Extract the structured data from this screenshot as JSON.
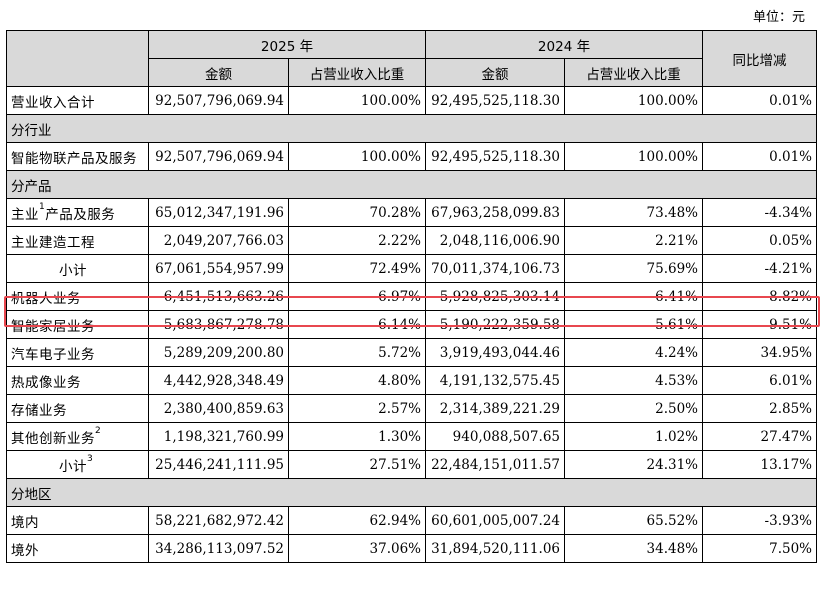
{
  "unit_label": "单位：元",
  "header": {
    "year_2025": "2025 年",
    "year_2024": "2024 年",
    "amount": "金额",
    "ratio": "占营业收入比重",
    "yoy": "同比增减"
  },
  "rows": [
    {
      "type": "data",
      "label": "营业收入合计",
      "a25": "92,507,796,069.94",
      "r25": "100.00%",
      "a24": "92,495,525,118.30",
      "r24": "100.00%",
      "yoy": "0.01%"
    },
    {
      "type": "section",
      "label": "分行业"
    },
    {
      "type": "data",
      "label": "智能物联产品及服务",
      "a25": "92,507,796,069.94",
      "r25": "100.00%",
      "a24": "92,495,525,118.30",
      "r24": "100.00%",
      "yoy": "0.01%"
    },
    {
      "type": "section",
      "label": "分产品"
    },
    {
      "type": "data",
      "label": "主业",
      "sup": "1",
      "label2": "产品及服务",
      "a25": "65,012,347,191.96",
      "r25": "70.28%",
      "a24": "67,963,258,099.83",
      "r24": "73.48%",
      "yoy": "-4.34%"
    },
    {
      "type": "data",
      "label": "主业建造工程",
      "a25": "2,049,207,766.03",
      "r25": "2.22%",
      "a24": "2,048,116,006.90",
      "r24": "2.21%",
      "yoy": "0.05%"
    },
    {
      "type": "data",
      "label": "小计",
      "indent": true,
      "a25": "67,061,554,957.99",
      "r25": "72.49%",
      "a24": "70,011,374,106.73",
      "r24": "75.69%",
      "yoy": "-4.21%"
    },
    {
      "type": "data",
      "label": "机器人业务",
      "a25": "6,451,513,663.26",
      "r25": "6.97%",
      "a24": "5,928,825,303.14",
      "r24": "6.41%",
      "yoy": "8.82%"
    },
    {
      "type": "data",
      "label": "智能家居业务",
      "a25": "5,683,867,278.78",
      "r25": "6.14%",
      "a24": "5,190,222,359.58",
      "r24": "5.61%",
      "yoy": "9.51%"
    },
    {
      "type": "data",
      "label": "汽车电子业务",
      "a25": "5,289,209,200.80",
      "r25": "5.72%",
      "a24": "3,919,493,044.46",
      "r24": "4.24%",
      "yoy": "34.95%"
    },
    {
      "type": "data",
      "label": "热成像业务",
      "a25": "4,442,928,348.49",
      "r25": "4.80%",
      "a24": "4,191,132,575.45",
      "r24": "4.53%",
      "yoy": "6.01%"
    },
    {
      "type": "data",
      "label": "存储业务",
      "a25": "2,380,400,859.63",
      "r25": "2.57%",
      "a24": "2,314,389,221.29",
      "r24": "2.50%",
      "yoy": "2.85%"
    },
    {
      "type": "data",
      "label": "其他创新业务",
      "sup": "2",
      "a25": "1,198,321,760.99",
      "r25": "1.30%",
      "a24": "940,088,507.65",
      "r24": "1.02%",
      "yoy": "27.47%"
    },
    {
      "type": "data",
      "label": "小计",
      "sup": "3",
      "indent": true,
      "a25": "25,446,241,111.95",
      "r25": "27.51%",
      "a24": "22,484,151,011.57",
      "r24": "24.31%",
      "yoy": "13.17%"
    },
    {
      "type": "section",
      "label": "分地区"
    },
    {
      "type": "data",
      "label": "境内",
      "a25": "58,221,682,972.42",
      "r25": "62.94%",
      "a24": "60,601,005,007.24",
      "r24": "65.52%",
      "yoy": "-3.93%"
    },
    {
      "type": "data",
      "label": "境外",
      "a25": "34,286,113,097.52",
      "r25": "37.06%",
      "a24": "31,894,520,111.06",
      "r24": "34.48%",
      "yoy": "7.50%"
    }
  ],
  "highlight_color": "#e8474f",
  "header_bg": "#d9d9d9"
}
